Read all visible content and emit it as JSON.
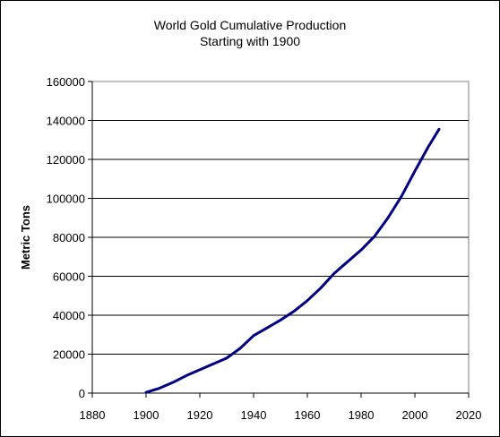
{
  "chart_data": {
    "type": "line",
    "title": "World Gold Cumulative Production",
    "subtitle": "Starting with 1900",
    "xlabel": "",
    "ylabel": "Metric Tons",
    "xlim": [
      1880,
      2020
    ],
    "ylim": [
      0,
      160000
    ],
    "x_ticks": [
      "1880",
      "1900",
      "1920",
      "1940",
      "1960",
      "1980",
      "2000",
      "2020"
    ],
    "y_ticks": [
      "0",
      "20000",
      "40000",
      "60000",
      "80000",
      "100000",
      "120000",
      "140000",
      "160000"
    ],
    "grid": "horizontal",
    "legend": "none",
    "line_color": "#000080",
    "series": [
      {
        "x": [
          1900,
          1905,
          1910,
          1915,
          1920,
          1925,
          1930,
          1935,
          1940,
          1945,
          1950,
          1955,
          1960,
          1965,
          1970,
          1975,
          1980,
          1985,
          1990,
          1995,
          2000,
          2005,
          2009
        ],
        "values": [
          400,
          2500,
          5500,
          9000,
          12000,
          15000,
          18000,
          23000,
          29500,
          33500,
          37500,
          42000,
          47500,
          54000,
          61500,
          67500,
          73500,
          80500,
          90000,
          101000,
          114000,
          126500,
          135500
        ]
      }
    ]
  }
}
